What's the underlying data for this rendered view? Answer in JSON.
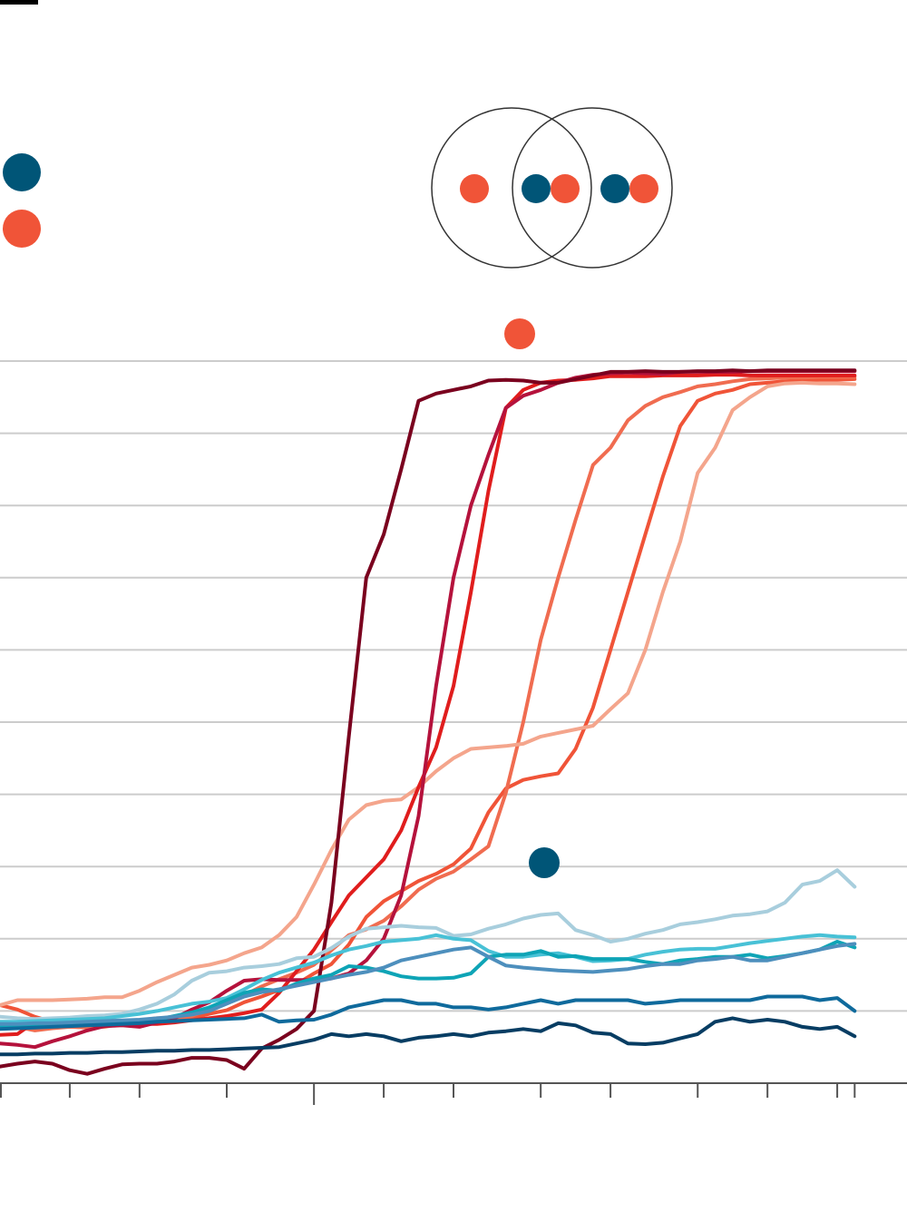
{
  "colors": {
    "background": "#ffffff",
    "blue_marker": "#005577",
    "red_marker": "#f05438",
    "gridline": "#cccccc",
    "axis": "#555555",
    "venn_stroke": "#333333"
  },
  "legend": {
    "items": [
      {
        "marker": "circle",
        "color": "#005577",
        "label": ""
      },
      {
        "marker": "circle",
        "color": "#f05438",
        "label": ""
      }
    ]
  },
  "venn": {
    "circles": 2,
    "left_only_markers": [
      "#f05438"
    ],
    "overlap_markers": [
      "#005577",
      "#f05438"
    ],
    "right_only_markers": [
      "#005577",
      "#f05438"
    ]
  },
  "chart_data": {
    "type": "line",
    "title": "",
    "xlabel": "",
    "ylabel": "",
    "grid": true,
    "y_grid_count": 10,
    "ylim": [
      0,
      100
    ],
    "x": [
      0,
      1,
      2,
      3,
      4,
      5,
      6,
      7,
      8,
      9,
      10,
      11,
      12,
      13,
      14,
      15,
      16,
      17,
      18,
      19,
      20,
      21,
      22,
      23,
      24,
      25,
      26,
      27,
      28,
      29,
      30,
      31,
      32,
      33,
      34,
      35,
      36,
      37,
      38,
      39,
      40,
      41,
      42,
      43,
      44,
      45,
      46,
      47,
      48,
      49
    ],
    "xlim": [
      0,
      52
    ],
    "x_ticks": [
      0,
      4,
      8,
      13,
      18,
      22,
      26,
      31,
      35,
      40,
      44,
      48,
      49
    ],
    "x_tick_labels": [],
    "series": [
      {
        "color": "#f05438",
        "values": [
          10.8,
          10.2,
          9.2,
          8.5,
          8.5,
          8.8,
          8.8,
          8.5,
          8.7,
          9.0,
          9.0,
          9.0,
          9.6,
          10.1,
          11.2,
          12.0,
          12.9,
          13.7,
          15.2,
          16.5,
          19.2,
          23.0,
          25.2,
          26.6,
          28.0,
          29.0,
          30.3,
          32.5,
          37.5,
          40.8,
          42.0,
          42.5,
          42.9,
          46.3,
          52.0,
          60.0,
          68.0,
          76.0,
          84.0,
          91.0,
          94.5,
          95.5,
          96.0,
          96.8,
          97.0,
          97.2,
          97.3,
          97.4,
          97.4,
          97.5
        ]
      },
      {
        "color": "#f06c50",
        "values": [
          8.0,
          7.8,
          7.3,
          7.6,
          7.8,
          7.7,
          7.8,
          8.2,
          8.6,
          8.6,
          9.0,
          9.3,
          10.3,
          11.2,
          12.2,
          13.4,
          14.4,
          15.3,
          16.4,
          18.4,
          20.5,
          21.3,
          22.5,
          24.5,
          26.8,
          28.3,
          29.3,
          31.0,
          32.8,
          40.2,
          50.0,
          61.4,
          70.0,
          78.0,
          85.6,
          88.0,
          91.8,
          93.8,
          95.0,
          95.7,
          96.5,
          96.8,
          97.2,
          97.5,
          97.6,
          97.7,
          97.7,
          97.8,
          97.8,
          97.8
        ]
      },
      {
        "color": "#f4a58c",
        "values": [
          10.8,
          11.5,
          11.5,
          11.5,
          11.6,
          11.7,
          11.9,
          11.9,
          12.8,
          14.0,
          15.0,
          16.0,
          16.4,
          17.0,
          18.0,
          18.8,
          20.5,
          23.0,
          27.5,
          32.3,
          36.5,
          38.5,
          39.1,
          39.3,
          41.0,
          43.2,
          45.0,
          46.3,
          46.5,
          46.7,
          47.0,
          48.0,
          48.5,
          49.0,
          49.5,
          51.8,
          54.0,
          60.0,
          68.0,
          75.0,
          84.5,
          88.0,
          93.2,
          95.0,
          96.5,
          96.9,
          97.0,
          96.9,
          96.9,
          96.8
        ]
      },
      {
        "color": "#e01d1d",
        "values": [
          6.7,
          6.8,
          8.5,
          8.8,
          8.8,
          8.5,
          8.2,
          8.2,
          8.2,
          8.2,
          8.4,
          8.7,
          9.0,
          9.3,
          9.7,
          10.2,
          12.5,
          15.5,
          18.5,
          22.3,
          26.0,
          28.5,
          31.0,
          35.0,
          41.0,
          46.5,
          55.0,
          68.0,
          82.0,
          93.5,
          96.0,
          97.0,
          97.3,
          97.4,
          97.6,
          97.9,
          97.9,
          97.9,
          98.0,
          98.0,
          98.0,
          98.1,
          98.1,
          98.0,
          98.0,
          98.0,
          98.0,
          98.0,
          98.0,
          98.0
        ]
      },
      {
        "color": "#b5123c",
        "values": [
          5.5,
          5.3,
          5.0,
          5.8,
          6.5,
          7.3,
          7.9,
          8.0,
          7.8,
          8.4,
          9.0,
          10.2,
          11.2,
          12.8,
          14.2,
          14.4,
          14.3,
          14.3,
          14.3,
          14.5,
          15.2,
          17.0,
          20.0,
          26.0,
          37.0,
          55.0,
          70.0,
          80.0,
          87.0,
          93.5,
          95.2,
          96.0,
          97.0,
          97.7,
          98.1,
          98.3,
          98.4,
          98.3,
          98.2,
          98.5,
          98.5,
          98.5,
          98.5,
          98.6,
          98.6,
          98.6,
          98.6,
          98.6,
          98.6,
          98.6
        ]
      },
      {
        "color": "#7a001e",
        "values": [
          2.3,
          2.7,
          3.0,
          2.7,
          1.8,
          1.3,
          2.0,
          2.6,
          2.7,
          2.7,
          3.0,
          3.5,
          3.5,
          3.2,
          2.0,
          4.8,
          6.0,
          7.5,
          10.0,
          25.0,
          48.0,
          70.0,
          76.0,
          85.0,
          94.5,
          95.5,
          96.0,
          96.5,
          97.3,
          97.4,
          97.3,
          97.0,
          97.0,
          97.5,
          98.0,
          98.5,
          98.5,
          98.6,
          98.5,
          98.5,
          98.6,
          98.6,
          98.7,
          98.6,
          98.7,
          98.7,
          98.7,
          98.7,
          98.7,
          98.7
        ]
      },
      {
        "color": "#a8cedd",
        "values": [
          9.2,
          9.0,
          8.9,
          9.0,
          9.1,
          9.3,
          9.4,
          9.6,
          10.2,
          11.0,
          12.3,
          14.2,
          15.3,
          15.5,
          16.0,
          16.2,
          16.5,
          17.3,
          17.5,
          18.7,
          20.3,
          21.4,
          21.6,
          21.8,
          21.6,
          21.5,
          20.4,
          20.6,
          21.4,
          22.0,
          22.8,
          23.3,
          23.5,
          21.2,
          20.5,
          19.6,
          20.0,
          20.7,
          21.2,
          22.0,
          22.3,
          22.7,
          23.2,
          23.4,
          23.8,
          25.0,
          27.5,
          28.0,
          29.5,
          27.2
        ]
      },
      {
        "color": "#48c1d6",
        "values": [
          8.5,
          8.5,
          8.6,
          8.7,
          8.8,
          8.9,
          9.0,
          9.3,
          9.6,
          10.0,
          10.5,
          11.0,
          11.3,
          11.8,
          13.0,
          14.3,
          15.3,
          16.0,
          16.7,
          17.7,
          18.5,
          19.0,
          19.6,
          19.8,
          20.0,
          20.5,
          20.0,
          19.8,
          18.3,
          17.5,
          17.5,
          17.8,
          18.0,
          17.5,
          16.9,
          17.0,
          17.2,
          17.8,
          18.2,
          18.5,
          18.6,
          18.6,
          19.0,
          19.4,
          19.7,
          20.0,
          20.3,
          20.5,
          20.3,
          20.2
        ]
      },
      {
        "color": "#0ea4b6",
        "values": [
          7.8,
          7.8,
          7.9,
          8.0,
          8.0,
          8.1,
          8.2,
          8.3,
          8.5,
          8.8,
          9.3,
          9.8,
          10.5,
          11.5,
          12.5,
          13.0,
          12.8,
          13.8,
          14.5,
          15.0,
          16.2,
          16.0,
          15.5,
          14.8,
          14.5,
          14.5,
          14.6,
          15.2,
          17.5,
          17.8,
          17.8,
          18.3,
          17.5,
          17.6,
          17.2,
          17.2,
          17.2,
          16.8,
          16.5,
          17.0,
          17.2,
          17.5,
          17.5,
          17.8,
          17.3,
          17.6,
          18.0,
          18.5,
          19.6,
          18.8
        ]
      },
      {
        "color": "#4d8fbd",
        "values": [
          8.2,
          8.2,
          8.3,
          8.3,
          8.4,
          8.5,
          8.6,
          8.7,
          8.8,
          9.0,
          9.2,
          9.5,
          10.0,
          11.0,
          12.0,
          12.6,
          13.0,
          13.5,
          14.0,
          14.5,
          15.0,
          15.4,
          16.0,
          17.0,
          17.5,
          18.0,
          18.5,
          18.8,
          17.5,
          16.3,
          16.0,
          15.8,
          15.6,
          15.5,
          15.4,
          15.6,
          15.8,
          16.2,
          16.5,
          16.5,
          17.0,
          17.2,
          17.5,
          17.0,
          17.0,
          17.5,
          18.0,
          18.5,
          19.0,
          19.3
        ]
      },
      {
        "color": "#0f6a9c",
        "values": [
          7.5,
          7.6,
          7.7,
          7.8,
          7.9,
          8.0,
          8.1,
          8.2,
          8.3,
          8.5,
          8.6,
          8.7,
          8.8,
          8.9,
          9.0,
          9.5,
          8.5,
          8.7,
          8.8,
          9.5,
          10.5,
          11.0,
          11.5,
          11.5,
          11.0,
          11.0,
          10.5,
          10.5,
          10.2,
          10.5,
          11.0,
          11.5,
          11.0,
          11.5,
          11.5,
          11.5,
          11.5,
          11.0,
          11.2,
          11.5,
          11.5,
          11.5,
          11.5,
          11.5,
          12.0,
          12.0,
          12.0,
          11.5,
          11.8,
          10.0
        ]
      },
      {
        "color": "#073d63",
        "values": [
          4.0,
          4.0,
          4.1,
          4.1,
          4.2,
          4.2,
          4.3,
          4.3,
          4.4,
          4.5,
          4.5,
          4.6,
          4.6,
          4.7,
          4.8,
          4.9,
          5.0,
          5.5,
          6.0,
          6.8,
          6.5,
          6.8,
          6.5,
          5.8,
          6.3,
          6.5,
          6.8,
          6.5,
          7.0,
          7.2,
          7.5,
          7.2,
          8.3,
          8.0,
          7.0,
          6.8,
          5.5,
          5.4,
          5.6,
          6.2,
          6.8,
          8.5,
          9.0,
          8.5,
          8.8,
          8.5,
          7.8,
          7.5,
          7.8,
          6.5
        ]
      }
    ]
  }
}
